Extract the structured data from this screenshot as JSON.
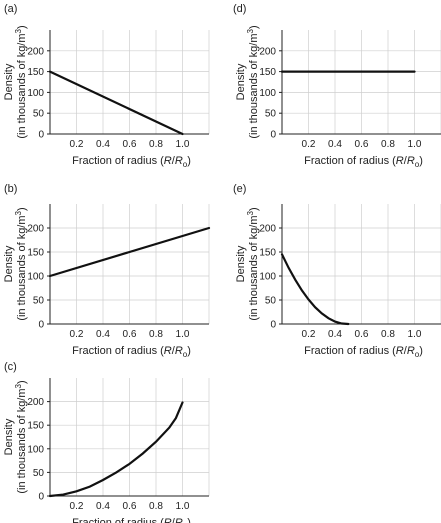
{
  "figure": {
    "panels": [
      {
        "label": "(a)"
      },
      {
        "label": "(d)"
      },
      {
        "label": "(b)"
      },
      {
        "label": "(e)"
      },
      {
        "label": "(c)"
      }
    ]
  },
  "chart_data": [
    {
      "type": "line",
      "panel": "(a)",
      "xlabel": "Fraction of radius (R/Rₒ)",
      "ylabel_line1": "Density",
      "ylabel_line2": "(in thousands of kg/m³)",
      "xlim": [
        0,
        1.2
      ],
      "ylim": [
        0,
        250
      ],
      "xticks": [
        "0.2",
        "0.4",
        "0.6",
        "0.8",
        "1.0"
      ],
      "yticks": [
        "0",
        "50",
        "100",
        "150",
        "200"
      ],
      "grid": true,
      "series": [
        {
          "x": [
            0,
            1.0
          ],
          "y": [
            150,
            0
          ]
        }
      ]
    },
    {
      "type": "line",
      "panel": "(d)",
      "xlabel": "Fraction of radius (R/Rₒ)",
      "ylabel_line1": "Density",
      "ylabel_line2": "(in thousands of kg/m³)",
      "xlim": [
        0,
        1.2
      ],
      "ylim": [
        0,
        250
      ],
      "xticks": [
        "0.2",
        "0.4",
        "0.6",
        "0.8",
        "1.0"
      ],
      "yticks": [
        "0",
        "50",
        "100",
        "150",
        "200"
      ],
      "grid": true,
      "series": [
        {
          "x": [
            0,
            1.0
          ],
          "y": [
            150,
            150
          ]
        }
      ]
    },
    {
      "type": "line",
      "panel": "(b)",
      "xlabel": "Fraction of radius (R/Rₒ)",
      "ylabel_line1": "Density",
      "ylabel_line2": "(in thousands of kg/m³)",
      "xlim": [
        0,
        1.2
      ],
      "ylim": [
        0,
        250
      ],
      "xticks": [
        "0.2",
        "0.4",
        "0.6",
        "0.8",
        "1.0"
      ],
      "yticks": [
        "0",
        "50",
        "100",
        "150",
        "200"
      ],
      "grid": true,
      "series": [
        {
          "x": [
            0,
            1.2
          ],
          "y": [
            100,
            200
          ]
        }
      ]
    },
    {
      "type": "line",
      "panel": "(e)",
      "xlabel": "Fraction of radius (R/Rₒ)",
      "ylabel_line1": "Density",
      "ylabel_line2": "(in thousands of kg/m³)",
      "xlim": [
        0,
        1.2
      ],
      "ylim": [
        0,
        250
      ],
      "xticks": [
        "0.2",
        "0.4",
        "0.6",
        "0.8",
        "1.0"
      ],
      "yticks": [
        "0",
        "50",
        "100",
        "150",
        "200"
      ],
      "grid": true,
      "series": [
        {
          "x": [
            0,
            0.05,
            0.1,
            0.15,
            0.2,
            0.25,
            0.3,
            0.35,
            0.4,
            0.45,
            0.5
          ],
          "y": [
            145,
            117,
            92,
            70,
            51,
            35,
            22,
            12,
            5,
            1,
            0
          ]
        }
      ]
    },
    {
      "type": "line",
      "panel": "(c)",
      "xlabel": "Fraction of radius (R/Rₒ)",
      "ylabel_line1": "Density",
      "ylabel_line2": "(in thousands of kg/m³)",
      "xlim": [
        0,
        1.2
      ],
      "ylim": [
        0,
        250
      ],
      "xticks": [
        "0.2",
        "0.4",
        "0.6",
        "0.8",
        "1.0"
      ],
      "yticks": [
        "0",
        "50",
        "100",
        "150",
        "200"
      ],
      "grid": true,
      "series": [
        {
          "x": [
            0,
            0.1,
            0.2,
            0.3,
            0.4,
            0.5,
            0.6,
            0.7,
            0.8,
            0.9,
            0.95,
            1.0
          ],
          "y": [
            0,
            3,
            10,
            20,
            34,
            50,
            68,
            90,
            115,
            145,
            165,
            198
          ]
        }
      ]
    }
  ]
}
